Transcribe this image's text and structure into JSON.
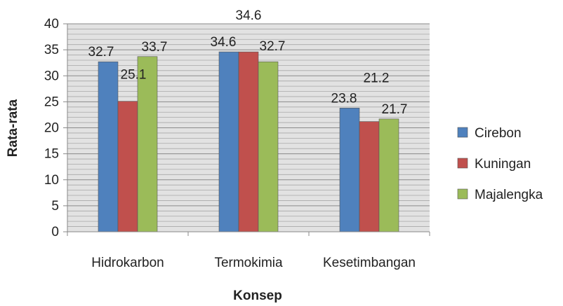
{
  "chart_data": {
    "type": "bar",
    "title": "",
    "xlabel": "Konsep",
    "ylabel": "Rata-rata",
    "categories": [
      "Hidrokarbon",
      "Termokimia",
      "Kesetimbangan"
    ],
    "series": [
      {
        "name": "Cirebon",
        "color": "#4F81BD",
        "values": [
          32.7,
          34.6,
          23.8
        ]
      },
      {
        "name": "Kuningan",
        "color": "#C0504D",
        "values": [
          25.1,
          34.6,
          21.2
        ]
      },
      {
        "name": "Majalengka",
        "color": "#9BBB59",
        "values": [
          33.7,
          32.7,
          21.7
        ]
      }
    ],
    "ylim": [
      0,
      40
    ],
    "yticks": [
      0,
      5,
      10,
      15,
      20,
      25,
      30,
      35,
      40
    ],
    "grid": true,
    "legend_position": "right"
  }
}
